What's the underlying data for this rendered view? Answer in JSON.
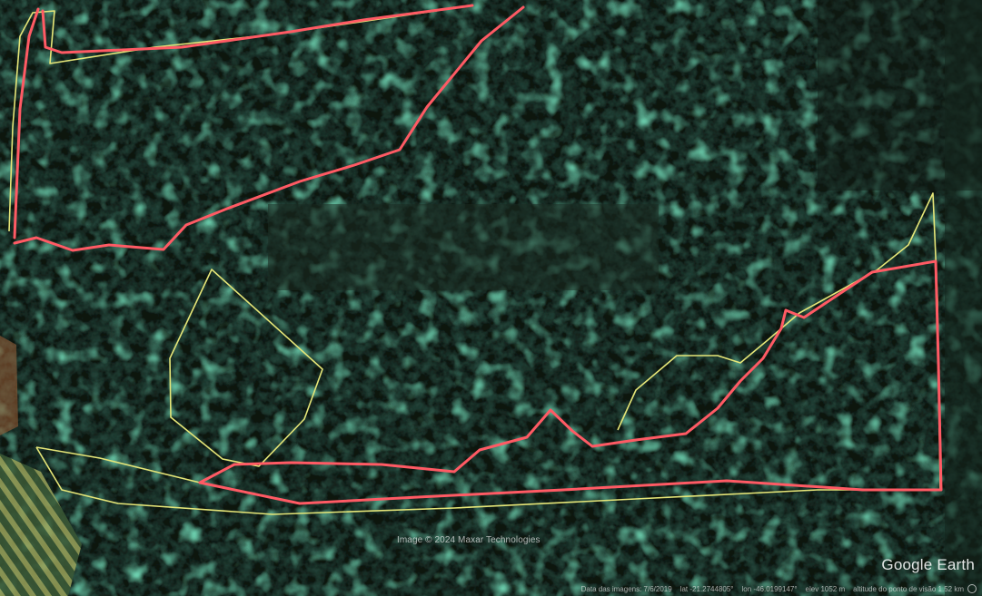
{
  "map": {
    "attribution": "Image © 2024 Maxar Technologies",
    "logo": "Google Earth",
    "status": {
      "imagery_date": "Data das imagens: 7/6/2019",
      "latitude": "lat -21.2744805°",
      "longitude": "lon -46.0199147°",
      "elevation": "elev 1052 m",
      "eye_altitude": "altitude do ponto de visão 1.52 km"
    },
    "colors": {
      "boundary_red": "#ff5a64",
      "boundary_yellow": "#e6e678",
      "canopy_dark": "#0b120e",
      "vegetation_green": "#3c9a6e"
    },
    "icons": [
      "compass-icon"
    ]
  }
}
